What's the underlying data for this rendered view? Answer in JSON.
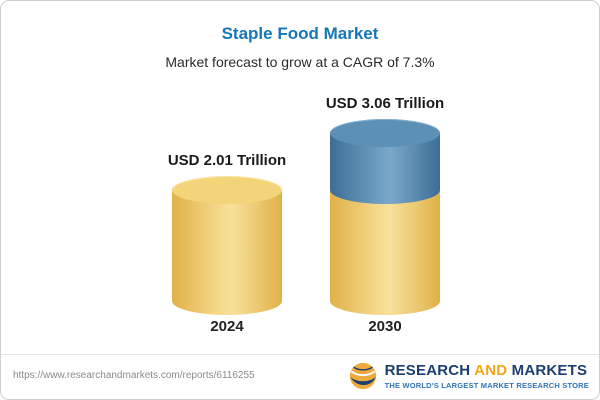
{
  "header": {
    "title": "Staple Food Market",
    "subtitle": "Market forecast to grow at a CAGR of 7.3%"
  },
  "chart_data": {
    "type": "bar",
    "style": "3d-cylinder",
    "title": "Staple Food Market",
    "subtitle": "Market forecast to grow at a CAGR of 7.3%",
    "cagr_pct": 7.3,
    "unit": "USD Trillion",
    "categories": [
      "2024",
      "2030"
    ],
    "values": [
      2.01,
      3.06
    ],
    "value_labels": [
      "USD 2.01 Trillion",
      "USD 3.06 Trillion"
    ],
    "segment_note": "2030 bar: yellow base segment equals 2024 value (2.01), blue top segment is the growth (1.05)",
    "colors": {
      "base": "#EFC75E",
      "growth": "#4E7FA6"
    },
    "axes": "none",
    "legend": "none",
    "gridlines": false
  },
  "footer": {
    "url": "https://www.researchandmarkets.com/reports/6116255",
    "logo": {
      "part1": "RESEARCH",
      "part2": "AND",
      "part3": "MARKETS",
      "tagline": "THE WORLD'S LARGEST MARKET RESEARCH STORE"
    }
  }
}
